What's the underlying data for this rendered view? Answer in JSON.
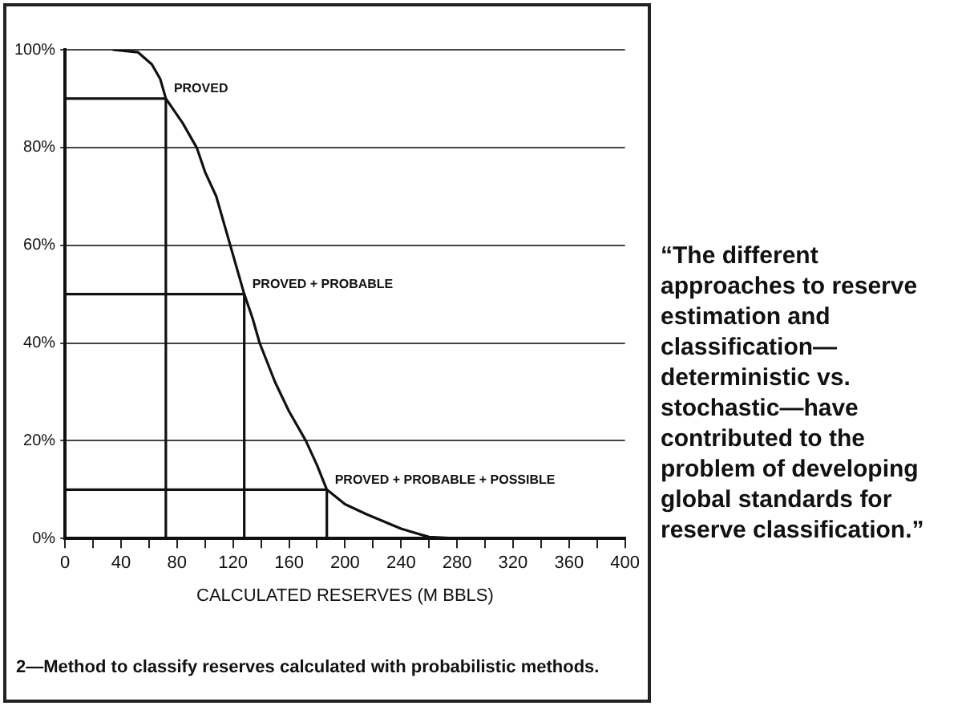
{
  "chart_data": {
    "type": "line",
    "xlabel": "CALCULATED RESERVES (M BBLS)",
    "xlim": [
      0,
      400
    ],
    "xticks": [
      0,
      {
        "value": 20,
        "label": null
      },
      40,
      {
        "value": 60,
        "label": null
      },
      80,
      {
        "value": 100,
        "label": null
      },
      120,
      {
        "value": 140,
        "label": null
      },
      160,
      {
        "value": 180,
        "label": null
      },
      200,
      {
        "value": 220,
        "label": null
      },
      240,
      {
        "value": 260,
        "label": null
      },
      280,
      {
        "value": 300,
        "label": null
      },
      320,
      {
        "value": 340,
        "label": null
      },
      360,
      {
        "value": 380,
        "label": null
      },
      400
    ],
    "ylim": [
      0,
      100
    ],
    "yticks": [
      {
        "value": 0,
        "label": "0%"
      },
      {
        "value": 20,
        "label": "20%"
      },
      {
        "value": 40,
        "label": "40%"
      },
      {
        "value": 60,
        "label": "60%"
      },
      {
        "value": 80,
        "label": "80%"
      },
      {
        "value": 100,
        "label": "100%"
      }
    ],
    "grid": "y",
    "legend": false,
    "marker": "none",
    "line_style": "solid",
    "series": [
      {
        "color": "#111111",
        "x": [
          34,
          52,
          62,
          68,
          72,
          84,
          94,
          100,
          108,
          115,
          118,
          123,
          128,
          134,
          139,
          150,
          160,
          172,
          180,
          187,
          200,
          215,
          240,
          260,
          280,
          400
        ],
        "values": [
          100,
          99.5,
          97,
          94,
          90,
          85,
          80,
          75,
          70,
          63,
          60,
          55,
          50,
          45,
          40,
          32,
          26,
          20,
          15,
          10,
          7,
          5,
          2,
          0.3,
          0,
          0
        ]
      },
      {
        "color": "#111111",
        "x": [
          0,
          72,
          72
        ],
        "values": [
          90,
          90,
          0
        ]
      },
      {
        "color": "#111111",
        "x": [
          0,
          128,
          128
        ],
        "values": [
          50,
          50,
          0
        ]
      },
      {
        "color": "#111111",
        "x": [
          0,
          187,
          187
        ],
        "values": [
          10,
          10,
          0
        ]
      }
    ],
    "annotations": [
      {
        "text": "PROVED",
        "x": 72,
        "y": 90
      },
      {
        "text": "PROVED + PROBABLE",
        "x": 128,
        "y": 50
      },
      {
        "text": "PROVED + PROBABLE + POSSIBLE",
        "x": 187,
        "y": 10
      },
      "“The different approaches to reserve estimation and classification—deterministic vs. stochastic—have contributed to the problem of developing global standards for reserve classification.”",
      "2—Method to classify reserves calculated with probabilistic methods."
    ]
  }
}
